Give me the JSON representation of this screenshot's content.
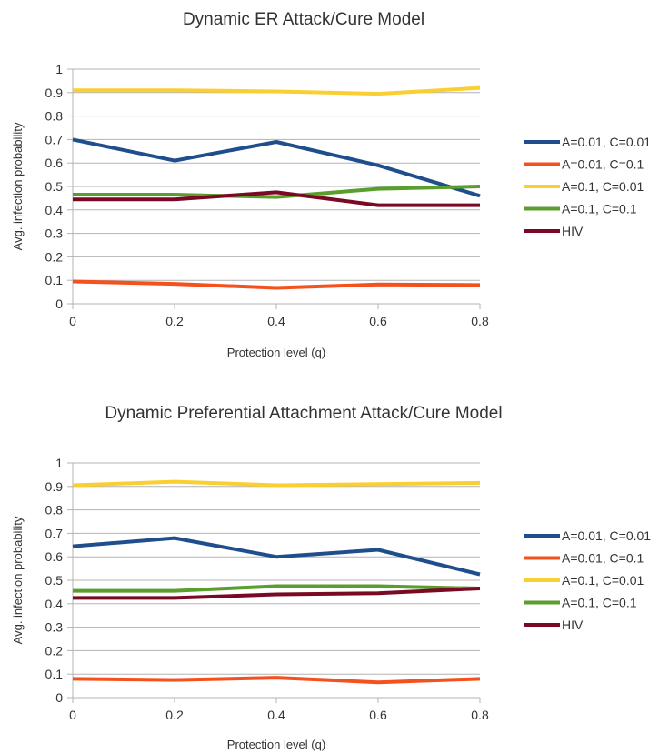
{
  "chart_data": [
    {
      "type": "line",
      "title": "Dynamic ER Attack/Cure Model",
      "xlabel": "Protection level (q)",
      "ylabel": "Avg. infection probability",
      "x": [
        0,
        0.2,
        0.4,
        0.6,
        0.8
      ],
      "x_tick_labels": [
        "0",
        "0.2",
        "0.4",
        "0.6",
        "0.8"
      ],
      "y_tick_labels": [
        "0",
        "0.1",
        "0.2",
        "0.3",
        "0.4",
        "0.5",
        "0.6",
        "0.7",
        "0.8",
        "0.9",
        "1"
      ],
      "xlim": [
        0,
        0.8
      ],
      "ylim": [
        0,
        1
      ],
      "grid": true,
      "legend_position": "right",
      "series": [
        {
          "name": "A=0.01, C=0.01",
          "color": "#1f4e8c",
          "values": [
            0.7,
            0.61,
            0.69,
            0.59,
            0.46
          ]
        },
        {
          "name": "A=0.01, C=0.1",
          "color": "#f4511e",
          "values": [
            0.095,
            0.085,
            0.068,
            0.082,
            0.08
          ]
        },
        {
          "name": "A=0.1, C=0.01",
          "color": "#f9d030",
          "values": [
            0.91,
            0.91,
            0.905,
            0.895,
            0.92
          ]
        },
        {
          "name": "A=0.1, C=0.1",
          "color": "#5a9e2d",
          "values": [
            0.465,
            0.465,
            0.455,
            0.49,
            0.5
          ]
        },
        {
          "name": "HIV",
          "color": "#7a0a23",
          "values": [
            0.445,
            0.445,
            0.475,
            0.42,
            0.42
          ]
        }
      ]
    },
    {
      "type": "line",
      "title": "Dynamic Preferential Attachment Attack/Cure Model",
      "xlabel": "Protection level (q)",
      "ylabel": "Avg. infection probability",
      "x": [
        0,
        0.2,
        0.4,
        0.6,
        0.8
      ],
      "x_tick_labels": [
        "0",
        "0.2",
        "0.4",
        "0.6",
        "0.8"
      ],
      "y_tick_labels": [
        "0",
        "0.1",
        "0.2",
        "0.3",
        "0.4",
        "0.5",
        "0.6",
        "0.7",
        "0.8",
        "0.9",
        "1"
      ],
      "xlim": [
        0,
        0.8
      ],
      "ylim": [
        0,
        1
      ],
      "grid": true,
      "legend_position": "right",
      "series": [
        {
          "name": "A=0.01, C=0.01",
          "color": "#1f4e8c",
          "values": [
            0.645,
            0.68,
            0.6,
            0.63,
            0.525
          ]
        },
        {
          "name": "A=0.01, C=0.1",
          "color": "#f4511e",
          "values": [
            0.08,
            0.075,
            0.085,
            0.065,
            0.08
          ]
        },
        {
          "name": "A=0.1, C=0.01",
          "color": "#f9d030",
          "values": [
            0.905,
            0.92,
            0.905,
            0.91,
            0.915
          ]
        },
        {
          "name": "A=0.1, C=0.1",
          "color": "#5a9e2d",
          "values": [
            0.455,
            0.455,
            0.475,
            0.475,
            0.465
          ]
        },
        {
          "name": "HIV",
          "color": "#7a0a23",
          "values": [
            0.425,
            0.425,
            0.44,
            0.445,
            0.465
          ]
        }
      ]
    }
  ]
}
